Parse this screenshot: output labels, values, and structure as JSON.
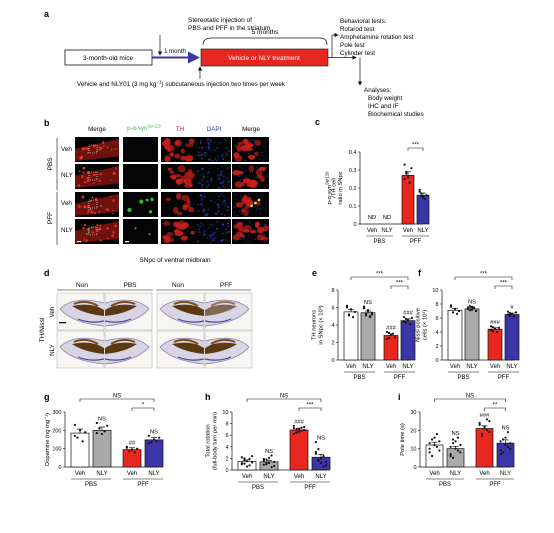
{
  "panel_a": {
    "letter": "a",
    "start_label": "3-month-old mice",
    "injection_label": [
      "Stereotatic injection of",
      "PBS and PFF in the striatum"
    ],
    "one_month": "1 month",
    "five_months": "5 months",
    "treatment_label": "Vehicle or NLY treatment",
    "drug_label_pre": "Vehicle and NLY01 (3 mg kg",
    "drug_label_sup": "−1",
    "drug_label_post": ") subcutaneous injection two times per week",
    "behavior_title": "Behavioral tests:",
    "behavior_items": [
      "Rotarod test",
      "Amphetamine rotation test",
      "Pole test",
      "Cylinder test"
    ],
    "analyses_title": "Analyses:",
    "analyses_items": [
      "Body weight",
      "IHC and IF",
      "Biochemical studies"
    ]
  },
  "panel_b": {
    "letter": "b",
    "col_headers": [
      "Merge",
      "p-α-syn",
      "TH",
      "DAPI",
      "Merge"
    ],
    "col_header_sup": "Ser129",
    "group_labels": [
      "PBS",
      "PFF"
    ],
    "row_labels": [
      "Veh",
      "NLY",
      "Veh",
      "NLY"
    ],
    "caption": "SNpc of ventral midbrain",
    "colors": {
      "red": "#c8201a",
      "green": "#2fbf3a",
      "blue": "#2b3aa8",
      "dark": "#050505"
    }
  },
  "panel_d": {
    "letter": "d",
    "stain_label": "TH/Nissl",
    "col_headers": [
      "Non",
      "PBS",
      "Non",
      "PFF"
    ],
    "row_labels": [
      "Veh",
      "NLY"
    ]
  },
  "chart_data": [
    {
      "panel": "c",
      "type": "bar",
      "ylabel_lines": [
        "p-α-syn",
        "/TH cell",
        "ratio in SNpc"
      ],
      "ylabel_sup": "Ser129",
      "ylim": [
        0,
        0.4
      ],
      "yticks": [
        "0",
        "0.1",
        "0.2",
        "0.3",
        "0.4"
      ],
      "categories": [
        "Veh",
        "NLY",
        "Veh",
        "NLY"
      ],
      "groups": [
        "PBS",
        "PFF"
      ],
      "values": [
        0,
        0,
        0.27,
        0.16
      ],
      "errors": [
        0,
        0,
        0.02,
        0.012
      ],
      "bar_colors": [
        "#ffffff",
        "#ffffff",
        "#e8281e",
        "#3b36a8"
      ],
      "bar_text": [
        "ND",
        "ND",
        "",
        ""
      ],
      "points": [
        [],
        [],
        [
          0.33,
          0.29,
          0.26,
          0.23,
          0.31,
          0.25,
          0.28
        ],
        [
          0.19,
          0.17,
          0.15,
          0.14,
          0.16,
          0.18,
          0.155
        ]
      ],
      "mark_text": [
        "",
        "",
        "",
        ""
      ],
      "sig": [
        {
          "from": 2,
          "to": 3,
          "label": "***"
        }
      ]
    },
    {
      "panel": "e",
      "type": "bar",
      "ylabel_lines": [
        "TH neurons",
        "in SNpc (× 10³)"
      ],
      "ylim": [
        0,
        8
      ],
      "yticks": [
        "0",
        "2",
        "4",
        "6",
        "8"
      ],
      "categories": [
        "Veh",
        "NLY",
        "Veh",
        "NLY"
      ],
      "groups": [
        "PBS",
        "PFF"
      ],
      "values": [
        5.5,
        5.4,
        2.8,
        4.5
      ],
      "errors": [
        0.25,
        0.2,
        0.2,
        0.2
      ],
      "bar_colors": [
        "#ffffff",
        "#a9a9a9",
        "#e8281e",
        "#3b36a8"
      ],
      "bar_text": [
        "",
        "",
        "",
        ""
      ],
      "points": [
        [
          6.0,
          5.2,
          5.8,
          4.9,
          5.5,
          6.2,
          5.1
        ],
        [
          5.9,
          5.1,
          5.6,
          5.0,
          5.4,
          6.1,
          5.3,
          5.7,
          4.9,
          5.2
        ],
        [
          3.2,
          2.5,
          2.9,
          3.0,
          2.6,
          2.4,
          3.1
        ],
        [
          4.9,
          4.3,
          4.6,
          4.1,
          4.8,
          4.4,
          4.7
        ]
      ],
      "mark_text": [
        "",
        "NS",
        "###",
        "###"
      ],
      "sig": [
        {
          "from": 2,
          "to": 3,
          "label": "***"
        },
        {
          "from": 0,
          "to": 3,
          "label": "***"
        }
      ]
    },
    {
      "panel": "f",
      "type": "bar",
      "ylabel_lines": [
        "Nissl positive",
        "cells (× 10³)"
      ],
      "ylim": [
        0,
        10
      ],
      "yticks": [
        "0",
        "2",
        "4",
        "6",
        "8",
        "10"
      ],
      "categories": [
        "Veh",
        "NLY",
        "Veh",
        "NLY"
      ],
      "groups": [
        "PBS",
        "PFF"
      ],
      "values": [
        7.1,
        7.3,
        4.4,
        6.5
      ],
      "errors": [
        0.25,
        0.15,
        0.2,
        0.2
      ],
      "bar_colors": [
        "#ffffff",
        "#a9a9a9",
        "#e8281e",
        "#3b36a8"
      ],
      "bar_text": [
        "",
        "",
        "",
        ""
      ],
      "points": [
        [
          7.6,
          6.8,
          7.3,
          6.6,
          7.0,
          7.8
        ],
        [
          7.5,
          7.1,
          7.6,
          7.4,
          7.0,
          7.3,
          7.7,
          7.2,
          7.5,
          7.0
        ],
        [
          4.8,
          4.1,
          4.5,
          4.0,
          4.6,
          4.3,
          4.7
        ],
        [
          6.9,
          6.3,
          6.6,
          6.2,
          6.8,
          6.5,
          6.7
        ]
      ],
      "mark_text": [
        "",
        "NS",
        "###",
        "#"
      ],
      "sig": [
        {
          "from": 2,
          "to": 3,
          "label": "***"
        },
        {
          "from": 0,
          "to": 3,
          "label": "***"
        }
      ]
    },
    {
      "panel": "g",
      "type": "bar",
      "ylabel_lines": [
        "Dopamine (ng mg⁻¹)"
      ],
      "ylim": [
        0,
        300
      ],
      "yticks": [
        "0",
        "100",
        "200",
        "300"
      ],
      "categories": [
        "Veh",
        "NLY",
        "Veh",
        "NLY"
      ],
      "groups": [
        "PBS",
        "PFF"
      ],
      "values": [
        185,
        200,
        95,
        148
      ],
      "errors": [
        22,
        18,
        10,
        12
      ],
      "bar_colors": [
        "#ffffff",
        "#a9a9a9",
        "#e8281e",
        "#3b36a8"
      ],
      "bar_text": [
        "",
        "",
        "",
        ""
      ],
      "points": [
        [
          230,
          160,
          200,
          140,
          190,
          170
        ],
        [
          240,
          210,
          180,
          195,
          225,
          185
        ],
        [
          110,
          85,
          95,
          80,
          100,
          105
        ],
        [
          170,
          135,
          150,
          140,
          160,
          130
        ]
      ],
      "mark_text": [
        "",
        "NS",
        "##",
        "NS"
      ],
      "sig": [
        {
          "from": 2,
          "to": 3,
          "label": "*"
        },
        {
          "from": 0,
          "to": 3,
          "label": "NS"
        }
      ]
    },
    {
      "panel": "h",
      "type": "bar",
      "ylabel_lines": [
        "Total rotation",
        "(full-body turn per min)"
      ],
      "ylim": [
        0,
        10
      ],
      "yticks": [
        "0",
        "2",
        "4",
        "6",
        "8",
        "10"
      ],
      "categories": [
        "Veh",
        "NLY",
        "Veh",
        "NLY"
      ],
      "groups": [
        "PBS",
        "PFF"
      ],
      "values": [
        1.5,
        1.4,
        6.9,
        2.2
      ],
      "errors": [
        0.25,
        0.25,
        0.3,
        0.5
      ],
      "bar_colors": [
        "#ffffff",
        "#a9a9a9",
        "#e8281e",
        "#3b36a8"
      ],
      "bar_text": [
        "",
        "",
        "",
        ""
      ],
      "points": [
        [
          1.0,
          2.0,
          1.5,
          0.8,
          2.4,
          1.2,
          1.7,
          0.6,
          1.9,
          1.3,
          2.2,
          1.1
        ],
        [
          0.9,
          1.8,
          1.2,
          2.5,
          0.7,
          1.6,
          1.3,
          2.1,
          0.5,
          1.4,
          1.9,
          1.0
        ],
        [
          7.6,
          6.4,
          7.1,
          6.8,
          7.4,
          6.2,
          7.0,
          6.6,
          7.3,
          6.9,
          7.2,
          6.5
        ],
        [
          4.8,
          3.6,
          1.2,
          2.4,
          0.8,
          3.1,
          1.6,
          2.0,
          0.6,
          1.4,
          2.8,
          1.8
        ]
      ],
      "mark_text": [
        "",
        "NS",
        "###",
        "NS"
      ],
      "sig": [
        {
          "from": 2,
          "to": 3,
          "label": "***"
        },
        {
          "from": 0,
          "to": 3,
          "label": "NS"
        }
      ]
    },
    {
      "panel": "i",
      "type": "bar",
      "ylabel_lines": [
        "Pole time (s)"
      ],
      "ylim": [
        0,
        30
      ],
      "yticks": [
        "0",
        "10",
        "20",
        "30"
      ],
      "categories": [
        "Veh",
        "NLY",
        "Veh",
        "NLY"
      ],
      "groups": [
        "PBS",
        "PFF"
      ],
      "values": [
        12,
        10,
        21,
        13
      ],
      "errors": [
        1.5,
        1.2,
        1.5,
        1.8
      ],
      "bar_colors": [
        "#ffffff",
        "#a9a9a9",
        "#e8281e",
        "#3b36a8"
      ],
      "bar_text": [
        "",
        "",
        "",
        ""
      ],
      "points": [
        [
          8,
          15,
          12,
          18,
          9,
          13,
          6,
          16,
          11,
          14,
          10
        ],
        [
          7,
          13,
          10,
          16,
          8,
          11,
          5,
          14,
          9,
          12,
          6,
          15
        ],
        [
          24,
          18,
          21,
          26,
          19,
          23,
          17,
          22,
          20,
          25
        ],
        [
          9,
          15,
          12,
          19,
          10,
          14,
          8,
          16,
          11,
          13,
          7
        ]
      ],
      "mark_text": [
        "",
        "NS",
        "###",
        "NS"
      ],
      "sig": [
        {
          "from": 2,
          "to": 3,
          "label": "**"
        },
        {
          "from": 0,
          "to": 3,
          "label": "NS"
        }
      ]
    }
  ]
}
